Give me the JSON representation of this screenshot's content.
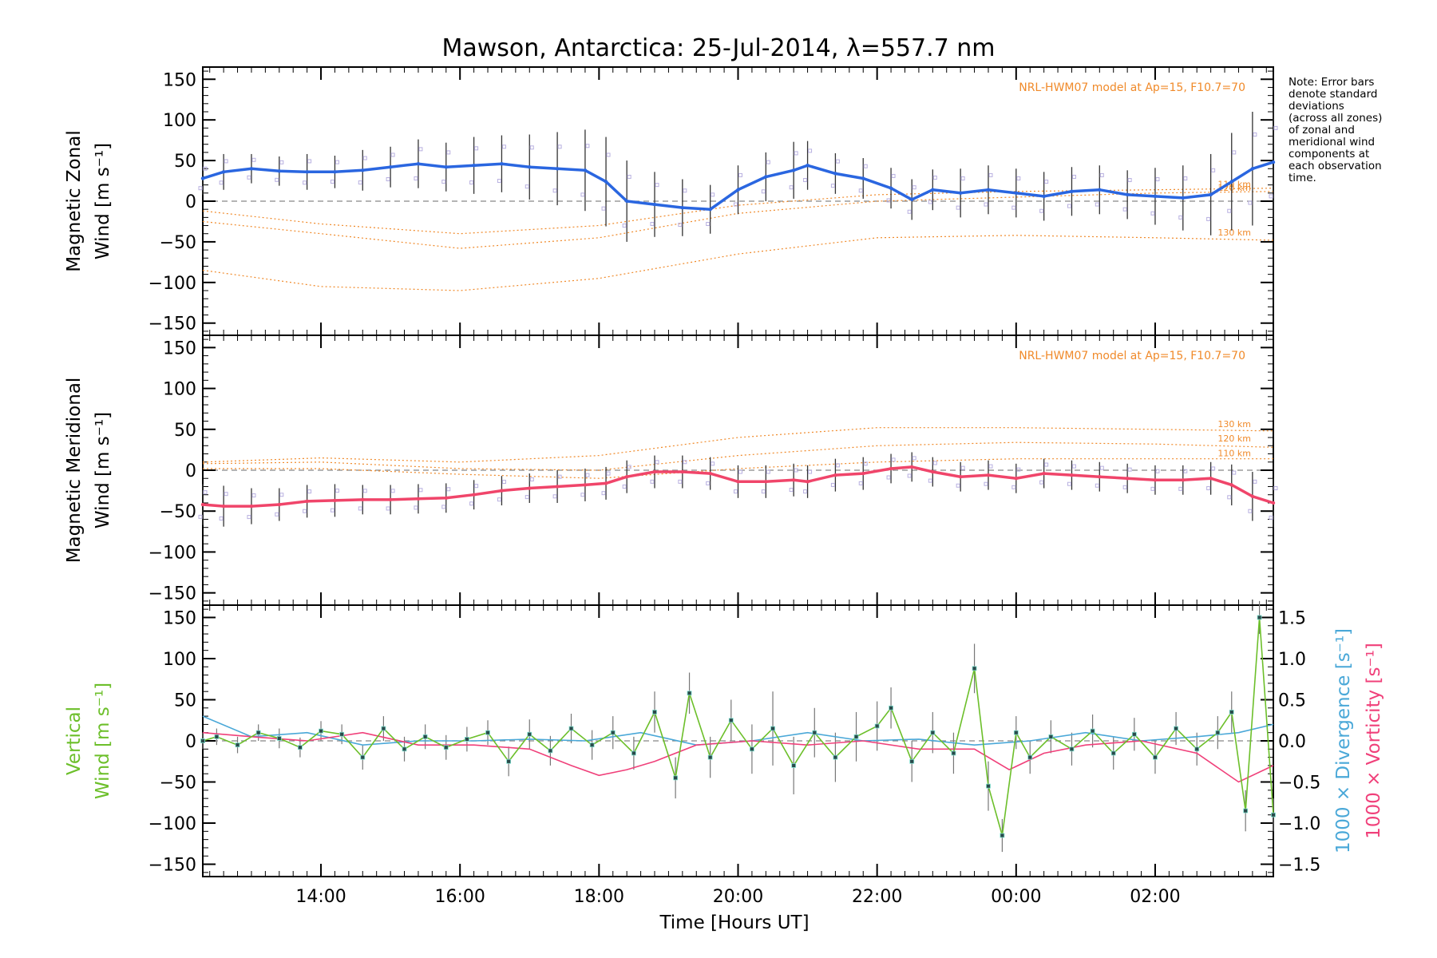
{
  "figure": {
    "title": "Mawson, Antarctica: 25-Jul-2014, λ=557.7 nm",
    "xlabel": "Time [Hours UT]",
    "note_lines": [
      "Note: Error bars",
      "denote standard",
      "deviations",
      "(across all zones)",
      "of zonal and",
      "meridional wind",
      "components at",
      "each observation",
      "time."
    ]
  },
  "colors": {
    "zonal": "#2a66e0",
    "meridional": "#f0456a",
    "vertical": "#6cbf2a",
    "divergence": "#4aa8d8",
    "vorticity": "#f0407a",
    "model": "#f08a2a",
    "scatter": "#b8b0e0",
    "errorbar": "#333333"
  },
  "chart_data": [
    {
      "type": "line",
      "name": "zonal",
      "ylabel_lines": [
        "Magnetic Zonal",
        "Wind [m s⁻¹]"
      ],
      "model_label": "NRL-HWM07 model at Ap=15, F10.7=70",
      "altitude_labels": [
        "130 km",
        "120 km",
        "110 km"
      ],
      "xlim": [
        12.3,
        27.7
      ],
      "ylim": [
        -165,
        165
      ],
      "yticks": [
        -150,
        -100,
        -50,
        0,
        50,
        100,
        150
      ],
      "x": [
        12.3,
        12.6,
        13.0,
        13.4,
        13.8,
        14.2,
        14.6,
        15.0,
        15.4,
        15.8,
        16.2,
        16.6,
        17.0,
        17.4,
        17.8,
        18.1,
        18.4,
        18.8,
        19.2,
        19.6,
        20.0,
        20.4,
        20.8,
        21.0,
        21.4,
        21.8,
        22.2,
        22.5,
        22.8,
        23.2,
        23.6,
        24.0,
        24.4,
        24.8,
        25.2,
        25.6,
        26.0,
        26.4,
        26.8,
        27.1,
        27.4,
        27.7
      ],
      "y": [
        28,
        36,
        40,
        37,
        36,
        36,
        38,
        42,
        46,
        42,
        44,
        46,
        42,
        40,
        38,
        24,
        0,
        -4,
        -8,
        -10,
        14,
        30,
        38,
        44,
        34,
        28,
        16,
        2,
        14,
        10,
        14,
        10,
        6,
        12,
        14,
        8,
        6,
        4,
        8,
        24,
        40,
        48
      ],
      "error": [
        20,
        22,
        18,
        18,
        22,
        20,
        25,
        25,
        30,
        30,
        35,
        35,
        40,
        45,
        50,
        55,
        50,
        40,
        35,
        30,
        30,
        30,
        35,
        30,
        25,
        25,
        25,
        25,
        25,
        30,
        30,
        30,
        30,
        30,
        30,
        30,
        35,
        40,
        50,
        60,
        70,
        70
      ],
      "model_curves": [
        {
          "label": "130 km",
          "x": [
            12.3,
            14.0,
            16.0,
            18.0,
            20.0,
            22.0,
            24.0,
            26.0,
            27.7
          ],
          "y": [
            -85,
            -105,
            -110,
            -95,
            -65,
            -45,
            -42,
            -45,
            -48
          ]
        },
        {
          "label": "120 km",
          "x": [
            12.3,
            14.0,
            16.0,
            18.0,
            20.0,
            22.0,
            24.0,
            26.0,
            27.7
          ],
          "y": [
            -25,
            -40,
            -58,
            -45,
            -15,
            0,
            5,
            10,
            12
          ]
        },
        {
          "label": "110 km",
          "x": [
            12.3,
            14.0,
            16.0,
            18.0,
            20.0,
            22.0,
            24.0,
            26.0,
            27.7
          ],
          "y": [
            -12,
            -28,
            -40,
            -30,
            -5,
            8,
            12,
            14,
            16
          ]
        }
      ]
    },
    {
      "type": "line",
      "name": "meridional",
      "ylabel_lines": [
        "Magnetic Meridional",
        "Wind [m s⁻¹]"
      ],
      "model_label": "NRL-HWM07 model at Ap=15, F10.7=70",
      "altitude_labels": [
        "130 km",
        "120 km",
        "110 km"
      ],
      "xlim": [
        12.3,
        27.7
      ],
      "ylim": [
        -165,
        165
      ],
      "yticks": [
        -150,
        -100,
        -50,
        0,
        50,
        100,
        150
      ],
      "x": [
        12.3,
        12.6,
        13.0,
        13.4,
        13.8,
        14.2,
        14.6,
        15.0,
        15.4,
        15.8,
        16.2,
        16.6,
        17.0,
        17.4,
        17.8,
        18.1,
        18.4,
        18.8,
        19.2,
        19.6,
        20.0,
        20.4,
        20.8,
        21.0,
        21.4,
        21.8,
        22.2,
        22.5,
        22.8,
        23.2,
        23.6,
        24.0,
        24.4,
        24.8,
        25.2,
        25.6,
        26.0,
        26.4,
        26.8,
        27.1,
        27.4,
        27.7
      ],
      "y": [
        -42,
        -44,
        -44,
        -42,
        -38,
        -37,
        -36,
        -36,
        -35,
        -34,
        -30,
        -25,
        -22,
        -20,
        -18,
        -16,
        -8,
        -2,
        -2,
        -4,
        -14,
        -14,
        -12,
        -14,
        -6,
        -4,
        2,
        4,
        -2,
        -8,
        -6,
        -10,
        -4,
        -6,
        -8,
        -10,
        -12,
        -12,
        -10,
        -18,
        -32,
        -40
      ],
      "error": [
        25,
        25,
        22,
        20,
        20,
        20,
        18,
        18,
        18,
        18,
        18,
        18,
        18,
        20,
        20,
        20,
        20,
        20,
        20,
        20,
        20,
        20,
        20,
        20,
        20,
        20,
        18,
        18,
        18,
        18,
        18,
        18,
        18,
        18,
        18,
        18,
        18,
        18,
        20,
        25,
        30,
        30
      ],
      "model_curves": [
        {
          "label": "130 km",
          "x": [
            12.3,
            14.0,
            16.0,
            18.0,
            20.0,
            22.0,
            24.0,
            26.0,
            27.7
          ],
          "y": [
            10,
            15,
            10,
            18,
            40,
            52,
            52,
            50,
            48
          ]
        },
        {
          "label": "120 km",
          "x": [
            12.3,
            14.0,
            16.0,
            18.0,
            20.0,
            22.0,
            24.0,
            26.0,
            27.7
          ],
          "y": [
            8,
            10,
            2,
            0,
            18,
            30,
            34,
            32,
            28
          ]
        },
        {
          "label": "110 km",
          "x": [
            12.3,
            14.0,
            16.0,
            18.0,
            20.0,
            22.0,
            24.0,
            26.0,
            27.7
          ],
          "y": [
            2,
            2,
            -5,
            -10,
            2,
            10,
            14,
            14,
            14
          ]
        }
      ]
    },
    {
      "type": "line",
      "name": "vertical",
      "ylabel_lines": [
        "Vertical",
        "Wind [m s⁻¹]"
      ],
      "right_ylabels": [
        "1000 × Divergence [s⁻¹]",
        "1000 × Vorticity [s⁻¹]"
      ],
      "xlim": [
        12.3,
        27.7
      ],
      "ylim": [
        -165,
        165
      ],
      "yticks": [
        -150,
        -100,
        -50,
        0,
        50,
        100,
        150
      ],
      "right_ylim": [
        -1.65,
        1.65
      ],
      "right_yticks": [
        -1.5,
        -1.0,
        -0.5,
        0.0,
        0.5,
        1.0,
        1.5
      ],
      "xticks": [
        14,
        16,
        18,
        20,
        22,
        24,
        26
      ],
      "xticklabels": [
        "14:00",
        "16:00",
        "18:00",
        "20:00",
        "22:00",
        "00:00",
        "02:00"
      ],
      "series": [
        {
          "name": "vertical wind",
          "x": [
            12.3,
            12.5,
            12.8,
            13.1,
            13.4,
            13.7,
            14.0,
            14.3,
            14.6,
            14.9,
            15.2,
            15.5,
            15.8,
            16.1,
            16.4,
            16.7,
            17.0,
            17.3,
            17.6,
            17.9,
            18.2,
            18.5,
            18.8,
            19.1,
            19.3,
            19.6,
            19.9,
            20.2,
            20.5,
            20.8,
            21.1,
            21.4,
            21.7,
            22.0,
            22.2,
            22.5,
            22.8,
            23.1,
            23.4,
            23.6,
            23.8,
            24.0,
            24.2,
            24.5,
            24.8,
            25.1,
            25.4,
            25.7,
            26.0,
            26.3,
            26.6,
            26.9,
            27.1,
            27.3,
            27.5,
            27.7
          ],
          "y": [
            0,
            5,
            -5,
            10,
            3,
            -8,
            12,
            8,
            -20,
            15,
            -10,
            5,
            -8,
            2,
            10,
            -25,
            8,
            -12,
            15,
            -5,
            10,
            -15,
            35,
            -45,
            58,
            -20,
            25,
            -10,
            15,
            -30,
            10,
            -20,
            5,
            18,
            40,
            -25,
            10,
            -15,
            88,
            -55,
            -115,
            10,
            -20,
            5,
            -10,
            12,
            -15,
            8,
            -20,
            15,
            -10,
            10,
            35,
            -85,
            150,
            -90
          ],
          "error": [
            10,
            10,
            10,
            10,
            12,
            12,
            12,
            12,
            15,
            15,
            15,
            15,
            15,
            15,
            15,
            18,
            18,
            18,
            18,
            18,
            20,
            20,
            25,
            25,
            25,
            25,
            25,
            30,
            45,
            35,
            30,
            30,
            30,
            30,
            25,
            25,
            25,
            25,
            30,
            30,
            20,
            20,
            20,
            20,
            20,
            20,
            20,
            20,
            20,
            20,
            20,
            20,
            25,
            25,
            20,
            20
          ]
        },
        {
          "name": "divergence",
          "x": [
            12.3,
            13.0,
            13.8,
            14.6,
            15.4,
            16.2,
            17.0,
            17.8,
            18.6,
            19.4,
            20.2,
            21.0,
            21.8,
            22.6,
            23.4,
            24.2,
            25.0,
            25.8,
            26.6,
            27.2,
            27.7
          ],
          "y": [
            0.3,
            0.05,
            0.1,
            -0.05,
            0.0,
            0.0,
            0.02,
            0.0,
            0.1,
            -0.05,
            0.0,
            0.1,
            0.0,
            0.02,
            -0.05,
            0.0,
            0.1,
            0.0,
            0.05,
            0.1,
            0.2
          ]
        },
        {
          "name": "vorticity",
          "x": [
            12.3,
            13.0,
            13.8,
            14.6,
            15.4,
            16.2,
            17.0,
            17.6,
            18.0,
            18.4,
            18.8,
            19.4,
            20.2,
            21.0,
            21.8,
            22.6,
            23.4,
            23.9,
            24.4,
            25.0,
            25.8,
            26.6,
            27.2,
            27.7
          ],
          "y": [
            0.1,
            0.05,
            0.0,
            0.1,
            -0.05,
            -0.05,
            -0.1,
            -0.3,
            -0.42,
            -0.35,
            -0.25,
            -0.05,
            0.0,
            -0.05,
            0.0,
            -0.1,
            -0.1,
            -0.35,
            -0.15,
            -0.05,
            0.0,
            -0.15,
            -0.5,
            -0.3
          ]
        }
      ]
    }
  ]
}
